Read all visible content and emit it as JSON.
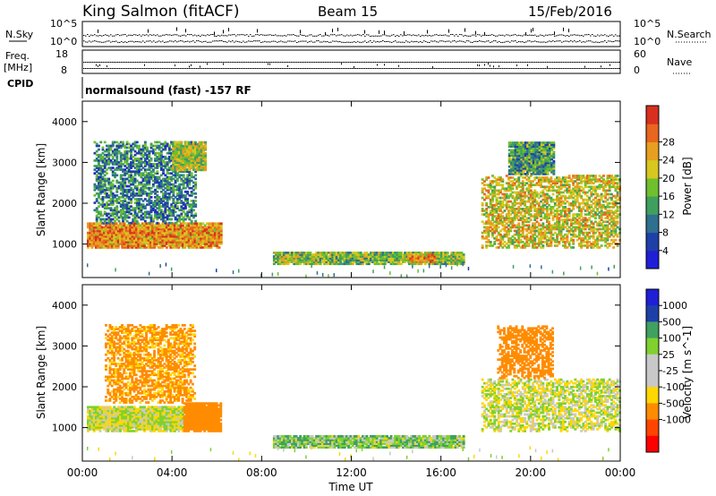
{
  "header": {
    "station": "King Salmon (fitACF)",
    "beam": "Beam 15",
    "date": "15/Feb/2016"
  },
  "strip_panels": {
    "nsky_label": "N.Sky",
    "nsky_ticks_left": [
      "10^5",
      "10^0"
    ],
    "nsky_ticks_right": [
      "10^5",
      "10^0"
    ],
    "nsearch_label": "N.Search",
    "freq_label_line1": "Freq.",
    "freq_label_line2": "[MHz]",
    "freq_ticks": [
      "18",
      "8"
    ],
    "nave_label": "Nave",
    "nave_ticks": [
      "60",
      "0"
    ],
    "cpid_label": "CPID",
    "cpid_text": "normalsound (fast) -157 RF"
  },
  "colors": {
    "power_scale": [
      "#1f1fd8",
      "#1f3fa8",
      "#2f6f8f",
      "#3f9f5f",
      "#6fbf2f",
      "#d7c71f",
      "#e79f1f",
      "#e8661f",
      "#d82f1f"
    ],
    "velocity_scale": [
      "#ff0000",
      "#ff4500",
      "#ff8c00",
      "#ffd700",
      "#c8c8c8",
      "#c8c8c8",
      "#7fd12f",
      "#3fa060",
      "#1f3fa8",
      "#1f1fd8"
    ],
    "ground_scatter": "#c8c8c8"
  },
  "chart_data": [
    {
      "type": "heatmap",
      "title": "Power",
      "xlabel": "",
      "ylabel": "Slant Range [km]",
      "xlim": [
        "00:00",
        "00:00"
      ],
      "ylim": [
        180,
        4500
      ],
      "x_ticks": [
        "00:00",
        "04:00",
        "08:00",
        "12:00",
        "16:00",
        "20:00",
        "00:00"
      ],
      "y_ticks": [
        "1000",
        "2000",
        "3000",
        "4000"
      ],
      "colorbar": {
        "label": "Power [dB]",
        "range": [
          0,
          32
        ],
        "ticks": [
          "4",
          "8",
          "12",
          "16",
          "20",
          "24",
          "28"
        ]
      },
      "regions": [
        {
          "t0": 0.2,
          "t1": 6.2,
          "r0": 900,
          "r1": 1500,
          "value": 24
        },
        {
          "t0": 0.5,
          "t1": 5.0,
          "r0": 1500,
          "r1": 3500,
          "value": 10
        },
        {
          "t0": 4.0,
          "t1": 5.5,
          "r0": 2800,
          "r1": 3500,
          "value": 18
        },
        {
          "t0": 8.5,
          "t1": 17.0,
          "r0": 500,
          "r1": 800,
          "value": 16
        },
        {
          "t0": 14.5,
          "t1": 15.8,
          "r0": 550,
          "r1": 750,
          "value": 24
        },
        {
          "t0": 17.8,
          "t1": 24.0,
          "r0": 900,
          "r1": 2700,
          "value": 20
        },
        {
          "t0": 19.0,
          "t1": 21.0,
          "r0": 2700,
          "r1": 3500,
          "value": 12
        }
      ]
    },
    {
      "type": "heatmap",
      "title": "Velocity",
      "xlabel": "Time UT",
      "ylabel": "Slant Range [km]",
      "xlim": [
        "00:00",
        "00:00"
      ],
      "ylim": [
        180,
        4500
      ],
      "x_ticks": [
        "00:00",
        "04:00",
        "08:00",
        "12:00",
        "16:00",
        "20:00",
        "00:00"
      ],
      "y_ticks": [
        "1000",
        "2000",
        "3000",
        "4000"
      ],
      "colorbar": {
        "label": "Velocity [m s^-1]",
        "ticks": [
          "1000",
          "500",
          "100",
          "25",
          "-25",
          "-100",
          "-500",
          "-1000"
        ]
      },
      "regions": [
        {
          "t0": 0.2,
          "t1": 4.5,
          "r0": 900,
          "r1": 1500,
          "value": 0
        },
        {
          "t0": 4.5,
          "t1": 6.2,
          "r0": 900,
          "r1": 1600,
          "value": -300
        },
        {
          "t0": 1.0,
          "t1": 5.0,
          "r0": 1600,
          "r1": 3500,
          "value": -150
        },
        {
          "t0": 8.5,
          "t1": 17.0,
          "r0": 500,
          "r1": 800,
          "value": 60
        },
        {
          "t0": 17.8,
          "t1": 24.0,
          "r0": 900,
          "r1": 2200,
          "value": 0
        },
        {
          "t0": 18.5,
          "t1": 21.0,
          "r0": 2200,
          "r1": 3500,
          "value": -300
        }
      ]
    }
  ]
}
